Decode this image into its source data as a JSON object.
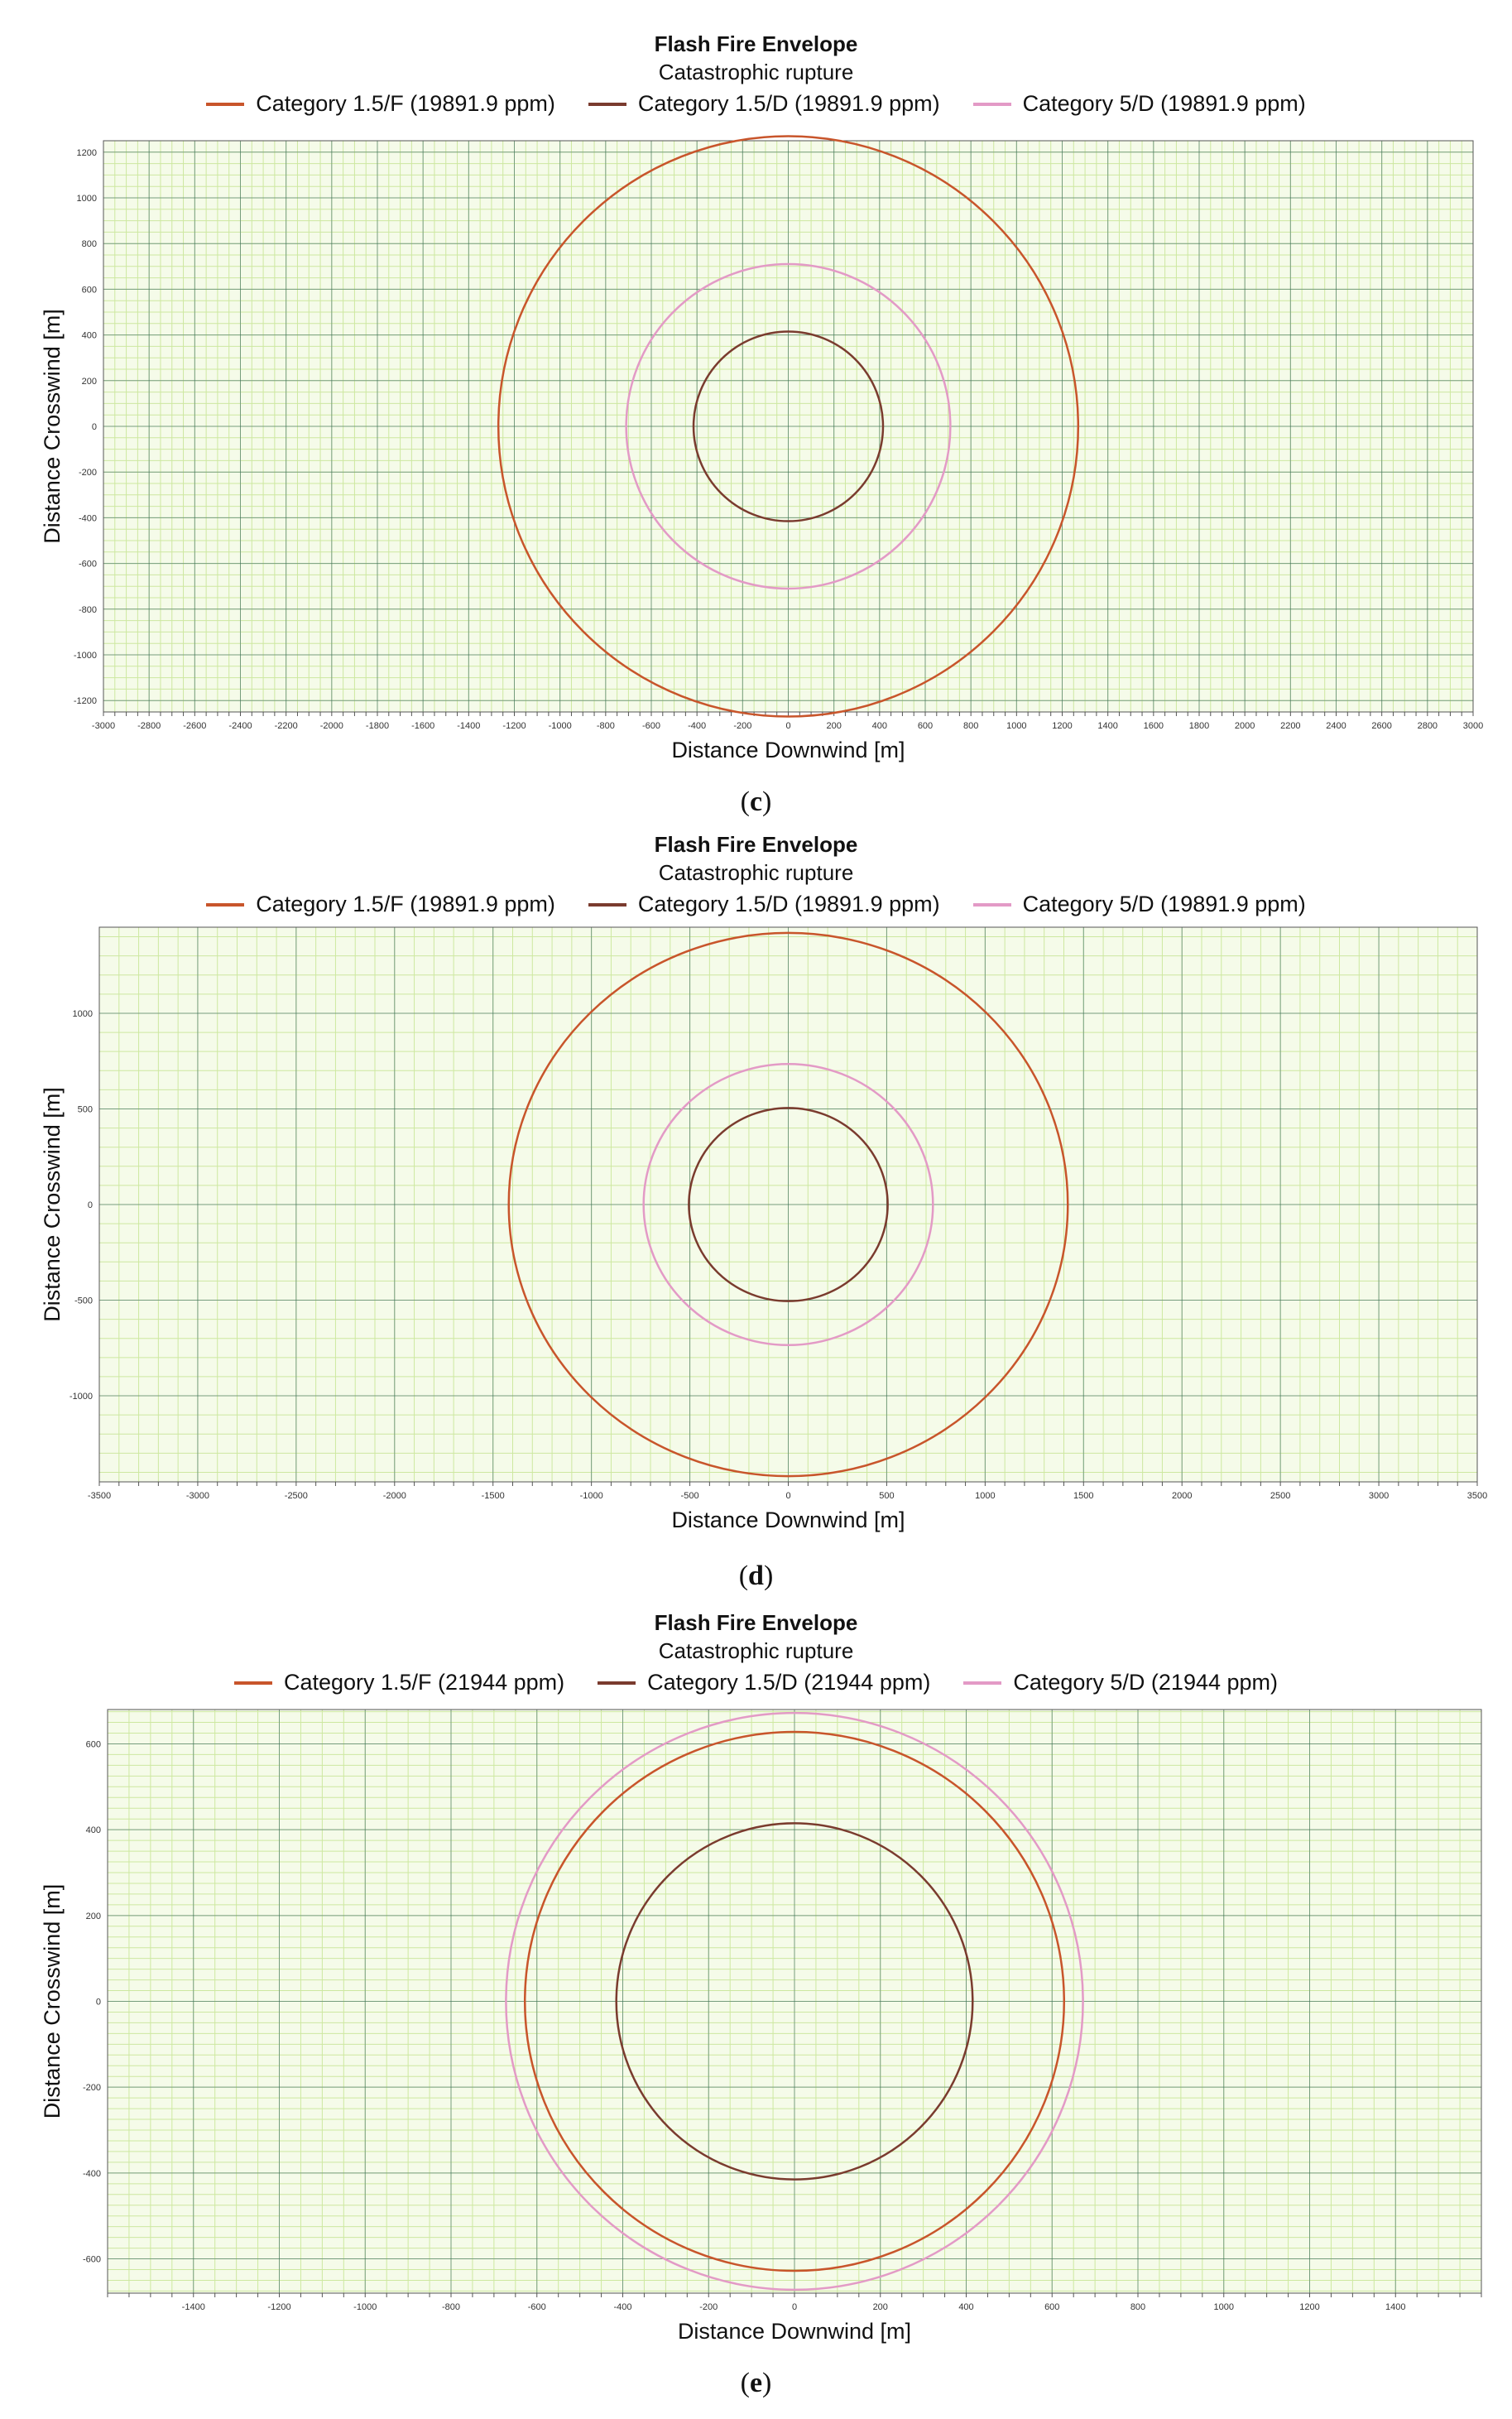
{
  "chart_data": [
    {
      "panel": "c",
      "type": "line",
      "title": "Flash Fire Envelope",
      "subtitle": "Catastrophic rupture",
      "xlabel": "Distance Downwind [m]",
      "ylabel": "Distance Crosswind [m]",
      "xlim": [
        -3000,
        3000
      ],
      "ylim": [
        -1250,
        1250
      ],
      "xticks": [
        -3000,
        -2800,
        -2600,
        -2400,
        -2200,
        -2000,
        -1800,
        -1600,
        -1400,
        -1200,
        -1000,
        -800,
        -600,
        -400,
        -200,
        0,
        200,
        400,
        600,
        800,
        1000,
        1200,
        1400,
        1600,
        1800,
        2000,
        2200,
        2400,
        2600,
        2800,
        3000
      ],
      "yticks": [
        -1200,
        -1000,
        -800,
        -600,
        -400,
        -200,
        0,
        200,
        400,
        600,
        800,
        1000,
        1200
      ],
      "minor_x": 50,
      "minor_y": 50,
      "grid": true,
      "legend_position": "top-center",
      "series": [
        {
          "name": "Category 1.5/F (19891.9 ppm)",
          "color": "#c8552b",
          "shape": "circle",
          "center": [
            0,
            0
          ],
          "radius": 1270
        },
        {
          "name": "Category 1.5/D (19891.9 ppm)",
          "color": "#7a3b2e",
          "shape": "circle",
          "center": [
            0,
            0
          ],
          "radius": 415
        },
        {
          "name": "Category 5/D (19891.9 ppm)",
          "color": "#e39ac6",
          "shape": "circle",
          "center": [
            0,
            0
          ],
          "radius": 710
        }
      ]
    },
    {
      "panel": "d",
      "type": "line",
      "title": "Flash Fire Envelope",
      "subtitle": "Catastrophic rupture",
      "xlabel": "Distance Downwind [m]",
      "ylabel": "Distance Crosswind [m]",
      "xlim": [
        -3500,
        3500
      ],
      "ylim": [
        -1450,
        1450
      ],
      "xticks": [
        -3500,
        -3000,
        -2500,
        -2000,
        -1500,
        -1000,
        -500,
        0,
        500,
        1000,
        1500,
        2000,
        2500,
        3000,
        3500
      ],
      "yticks": [
        -1000,
        -500,
        0,
        500,
        1000
      ],
      "minor_x": 100,
      "minor_y": 100,
      "grid": true,
      "legend_position": "top-center",
      "series": [
        {
          "name": "Category 1.5/F (19891.9 ppm)",
          "color": "#c8552b",
          "shape": "circle",
          "center": [
            0,
            0
          ],
          "radius": 1420
        },
        {
          "name": "Category 1.5/D (19891.9 ppm)",
          "color": "#7a3b2e",
          "shape": "circle",
          "center": [
            0,
            0
          ],
          "radius": 505
        },
        {
          "name": "Category 5/D (19891.9 ppm)",
          "color": "#e39ac6",
          "shape": "circle",
          "center": [
            0,
            0
          ],
          "radius": 735
        }
      ]
    },
    {
      "panel": "e",
      "type": "line",
      "title": "Flash Fire Envelope",
      "subtitle": "Catastrophic rupture",
      "xlabel": "Distance Downwind [m]",
      "ylabel": "Distance Crosswind [m]",
      "xlim": [
        -1600,
        1600
      ],
      "ylim": [
        -680,
        680
      ],
      "xticks": [
        -1400,
        -1200,
        -1000,
        -800,
        -600,
        -400,
        -200,
        0,
        200,
        400,
        600,
        800,
        1000,
        1200,
        1400
      ],
      "yticks": [
        -600,
        -400,
        -200,
        0,
        200,
        400,
        600
      ],
      "minor_x": 50,
      "minor_y": 25,
      "grid": true,
      "legend_position": "top-center",
      "series": [
        {
          "name": "Category 1.5/F (21944 ppm)",
          "color": "#c8552b",
          "shape": "circle",
          "center": [
            0,
            0
          ],
          "radius": 628
        },
        {
          "name": "Category 1.5/D (21944 ppm)",
          "color": "#7a3b2e",
          "shape": "circle",
          "center": [
            0,
            0
          ],
          "radius": 415
        },
        {
          "name": "Category 5/D (21944 ppm)",
          "color": "#e39ac6",
          "shape": "circle",
          "center": [
            0,
            0
          ],
          "radius": 672
        }
      ]
    }
  ],
  "captions": {
    "c": "c",
    "d": "d",
    "e": "e"
  },
  "colors": {
    "minor_grid": "#cde8a0",
    "major_grid": "#2f5f60",
    "plot_bg": "#f5fbe9"
  }
}
